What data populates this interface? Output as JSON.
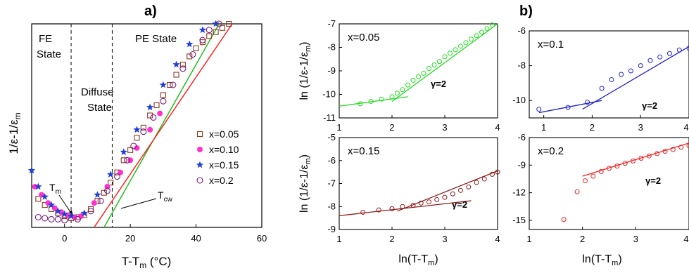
{
  "figure": {
    "panel_a_label": "a)",
    "panel_b_label": "b)"
  },
  "chart_data": [
    {
      "id": "a",
      "type": "scatter",
      "xlabel": "T-T",
      "xlabel_sub": "m",
      "xlabel_unit": " (°C)",
      "ylabel": "1/ε-1/ε",
      "ylabel_sub": "m",
      "xlim": [
        -10,
        60
      ],
      "xticks": [
        0,
        20,
        40,
        60
      ],
      "ylim": [
        0,
        1
      ],
      "annotations": {
        "fe_state": [
          "FE",
          "State"
        ],
        "diffuse_state": [
          "Diffuse",
          "State"
        ],
        "pe_state": "PE State",
        "tm": "T",
        "tm_sub": "m",
        "tcw": "T",
        "tcw_sub": "cw"
      },
      "vlines": [
        2,
        14.5
      ],
      "series": [
        {
          "name": "x=0.05",
          "marker": "square-open",
          "color": "#8b3a1f",
          "points": [
            [
              -8,
              0.14
            ],
            [
              -6,
              0.11
            ],
            [
              -4,
              0.09
            ],
            [
              -2,
              0.07
            ],
            [
              0,
              0.055
            ],
            [
              2,
              0.045
            ],
            [
              4,
              0.05
            ],
            [
              6,
              0.06
            ],
            [
              8,
              0.09
            ],
            [
              10,
              0.13
            ],
            [
              12,
              0.17
            ],
            [
              14,
              0.22
            ],
            [
              16,
              0.27
            ],
            [
              18,
              0.33
            ],
            [
              20,
              0.38
            ],
            [
              22,
              0.44
            ],
            [
              24,
              0.49
            ],
            [
              26,
              0.55
            ],
            [
              28,
              0.6
            ],
            [
              30,
              0.65
            ],
            [
              32,
              0.7
            ],
            [
              34,
              0.75
            ],
            [
              36,
              0.8
            ],
            [
              38,
              0.84
            ],
            [
              40,
              0.88
            ],
            [
              42,
              0.91
            ],
            [
              44,
              0.94
            ],
            [
              46,
              0.96
            ],
            [
              48,
              0.98
            ],
            [
              50,
              1.0
            ]
          ]
        },
        {
          "name": "x=0.10",
          "marker": "circle-filled",
          "color": "#ff33cc",
          "points": [
            [
              -9,
              0.2
            ],
            [
              -7,
              0.16
            ],
            [
              -5,
              0.12
            ],
            [
              -3,
              0.095
            ],
            [
              -1,
              0.075
            ],
            [
              1,
              0.06
            ],
            [
              3,
              0.05
            ],
            [
              5,
              0.055
            ],
            [
              9,
              0.12
            ],
            [
              13,
              0.2
            ],
            [
              17,
              0.27
            ],
            [
              20,
              0.33
            ],
            [
              22,
              0.39
            ],
            [
              26,
              0.48
            ],
            [
              29,
              0.56
            ]
          ]
        },
        {
          "name": "x=0.15",
          "marker": "star-filled",
          "color": "#1f3fd6",
          "points": [
            [
              -10,
              0.28
            ],
            [
              -8,
              0.2
            ],
            [
              -6,
              0.15
            ],
            [
              -4,
              0.11
            ],
            [
              -2,
              0.08
            ],
            [
              0,
              0.065
            ],
            [
              2,
              0.055
            ],
            [
              6,
              0.07
            ],
            [
              10,
              0.16
            ],
            [
              14,
              0.26
            ],
            [
              18,
              0.37
            ],
            [
              22,
              0.48
            ],
            [
              26,
              0.59
            ],
            [
              30,
              0.7
            ],
            [
              34,
              0.8
            ],
            [
              38,
              0.9
            ],
            [
              42,
              0.97
            ],
            [
              46,
              1.0
            ]
          ]
        },
        {
          "name": "x=0.2",
          "marker": "circle-open",
          "color": "#7a1a7a",
          "points": [
            [
              -8,
              0.05
            ],
            [
              -6,
              0.045
            ],
            [
              -4,
              0.04
            ],
            [
              -2,
              0.04
            ],
            [
              0,
              0.035
            ],
            [
              4,
              0.04
            ],
            [
              8,
              0.08
            ],
            [
              11,
              0.13
            ],
            [
              13,
              0.18
            ],
            [
              16,
              0.25
            ],
            [
              19,
              0.33
            ],
            [
              21,
              0.4
            ],
            [
              24,
              0.47
            ],
            [
              27,
              0.54
            ],
            [
              30,
              0.62
            ],
            [
              33,
              0.7
            ],
            [
              36,
              0.78
            ],
            [
              39,
              0.85
            ],
            [
              42,
              0.92
            ],
            [
              44,
              0.97
            ],
            [
              47,
              1.0
            ]
          ]
        }
      ],
      "fits": [
        {
          "color": "#20c020",
          "points": [
            [
              12,
              0.0
            ],
            [
              47,
              1.0
            ]
          ]
        },
        {
          "color": "#ff2020",
          "points": [
            [
              9,
              0.0
            ],
            [
              51,
              1.0
            ]
          ]
        }
      ]
    },
    {
      "id": "b1",
      "type": "scatter",
      "label": "x=0.05",
      "ylabel": "ln (1/ε-1/ε",
      "ylabel_sub": "m",
      "ylabel_end": ")",
      "color": "#22dd22",
      "xlim": [
        1,
        4
      ],
      "ylim": [
        -11,
        -7
      ],
      "xticks": [
        1,
        2,
        3,
        4
      ],
      "yticks": [
        -11,
        -10,
        -9,
        -8,
        -7
      ],
      "gamma": "γ=2",
      "points": [
        [
          1.4,
          -10.4
        ],
        [
          1.6,
          -10.3
        ],
        [
          1.8,
          -10.2
        ],
        [
          2.0,
          -10.1
        ],
        [
          2.1,
          -9.95
        ],
        [
          2.2,
          -9.8
        ],
        [
          2.3,
          -9.6
        ],
        [
          2.4,
          -9.4
        ],
        [
          2.5,
          -9.25
        ],
        [
          2.6,
          -9.1
        ],
        [
          2.7,
          -8.9
        ],
        [
          2.8,
          -8.75
        ],
        [
          2.9,
          -8.6
        ],
        [
          3.0,
          -8.4
        ],
        [
          3.1,
          -8.25
        ],
        [
          3.2,
          -8.1
        ],
        [
          3.3,
          -7.95
        ],
        [
          3.4,
          -7.8
        ],
        [
          3.5,
          -7.65
        ],
        [
          3.6,
          -7.5
        ],
        [
          3.7,
          -7.35
        ],
        [
          3.8,
          -7.2
        ],
        [
          3.9,
          -7.05
        ]
      ],
      "fit_lines": [
        [
          [
            1.0,
            -10.5
          ],
          [
            2.3,
            -10.1
          ]
        ],
        [
          [
            2.0,
            -10.3
          ],
          [
            4.0,
            -7.0
          ]
        ]
      ]
    },
    {
      "id": "b2",
      "type": "scatter",
      "label": "x=0.1",
      "color": "#2222cc",
      "xlim": [
        0.7,
        4
      ],
      "ylim": [
        -11,
        -6
      ],
      "xticks": [
        1,
        2,
        3,
        4
      ],
      "yticks": [
        -10,
        -8,
        -6
      ],
      "gamma": "γ=2",
      "points": [
        [
          0.9,
          -10.5
        ],
        [
          1.5,
          -10.4
        ],
        [
          1.9,
          -10.1
        ],
        [
          2.2,
          -9.3
        ],
        [
          2.4,
          -8.8
        ],
        [
          2.6,
          -8.5
        ],
        [
          2.8,
          -8.3
        ],
        [
          3.0,
          -8.0
        ],
        [
          3.2,
          -7.7
        ],
        [
          3.4,
          -7.5
        ],
        [
          3.6,
          -7.3
        ],
        [
          3.8,
          -7.1
        ],
        [
          4.0,
          -7.0
        ]
      ],
      "fit_lines": [
        [
          [
            0.9,
            -10.7
          ],
          [
            2.2,
            -10.0
          ]
        ],
        [
          [
            1.8,
            -10.5
          ],
          [
            4.0,
            -6.9
          ]
        ]
      ]
    },
    {
      "id": "b3",
      "type": "scatter",
      "label": "x=0.15",
      "ylabel": "ln (1/ε-1/ε",
      "ylabel_sub": "m",
      "ylabel_end": ")",
      "xlabel": "ln(T-T",
      "xlabel_sub": "m",
      "xlabel_end": ")",
      "color": "#8b1a1a",
      "xlim": [
        1,
        4
      ],
      "ylim": [
        -9,
        -5
      ],
      "xticks": [
        1,
        2,
        3,
        4
      ],
      "yticks": [
        -9,
        -8,
        -7,
        -6,
        -5
      ],
      "gamma": "γ=2",
      "points": [
        [
          1.45,
          -8.25
        ],
        [
          1.75,
          -8.15
        ],
        [
          2.0,
          -8.1
        ],
        [
          2.2,
          -8.0
        ],
        [
          2.4,
          -7.95
        ],
        [
          2.55,
          -7.85
        ],
        [
          2.7,
          -7.8
        ],
        [
          2.85,
          -7.7
        ],
        [
          3.0,
          -7.6
        ],
        [
          3.15,
          -7.45
        ],
        [
          3.3,
          -7.3
        ],
        [
          3.45,
          -7.15
        ],
        [
          3.6,
          -6.95
        ],
        [
          3.75,
          -6.8
        ],
        [
          3.9,
          -6.6
        ],
        [
          4.0,
          -6.5
        ]
      ],
      "fit_lines": [
        [
          [
            1.0,
            -8.4
          ],
          [
            3.5,
            -7.75
          ]
        ],
        [
          [
            2.1,
            -8.2
          ],
          [
            4.0,
            -6.45
          ]
        ]
      ]
    },
    {
      "id": "b4",
      "type": "scatter",
      "label": "x=0.2",
      "xlabel": "ln(T-T",
      "xlabel_sub": "m",
      "xlabel_end": ")",
      "color": "#ee2222",
      "xlim": [
        1,
        4
      ],
      "ylim": [
        -16,
        -6
      ],
      "xticks": [
        1,
        2,
        3,
        4
      ],
      "yticks": [
        -15,
        -12,
        -9,
        -6
      ],
      "gamma": "γ=2",
      "points": [
        [
          1.65,
          -14.9
        ],
        [
          1.9,
          -11.9
        ],
        [
          2.05,
          -10.7
        ],
        [
          2.2,
          -10.2
        ],
        [
          2.35,
          -9.7
        ],
        [
          2.5,
          -9.35
        ],
        [
          2.65,
          -9.1
        ],
        [
          2.8,
          -8.8
        ],
        [
          2.95,
          -8.55
        ],
        [
          3.1,
          -8.25
        ],
        [
          3.25,
          -8.0
        ],
        [
          3.4,
          -7.75
        ],
        [
          3.55,
          -7.5
        ],
        [
          3.7,
          -7.3
        ],
        [
          3.85,
          -7.05
        ],
        [
          4.0,
          -6.9
        ]
      ],
      "fit_lines": [
        [
          [
            2.0,
            -10.2
          ],
          [
            4.0,
            -6.6
          ]
        ]
      ]
    }
  ]
}
